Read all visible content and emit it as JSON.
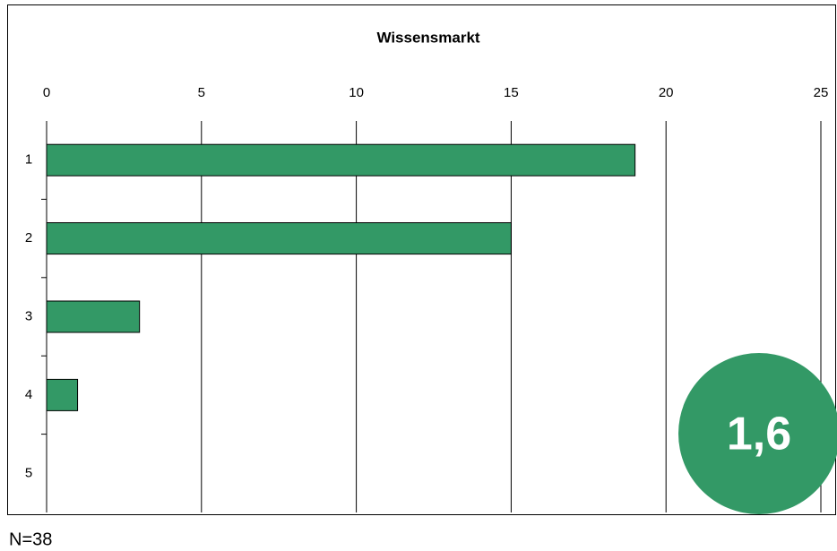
{
  "chart_data": {
    "type": "barh",
    "title": "Wissensmarkt",
    "categories": [
      "1",
      "2",
      "3",
      "4",
      "5"
    ],
    "values": [
      19,
      15,
      3,
      1,
      0
    ],
    "color": "#339966",
    "xlim": [
      0,
      25
    ],
    "xticks": [
      0,
      5,
      10,
      15,
      20,
      25
    ],
    "grid": true,
    "annotations": [
      "N=38",
      "1,6"
    ],
    "badge_color": "#339966"
  }
}
